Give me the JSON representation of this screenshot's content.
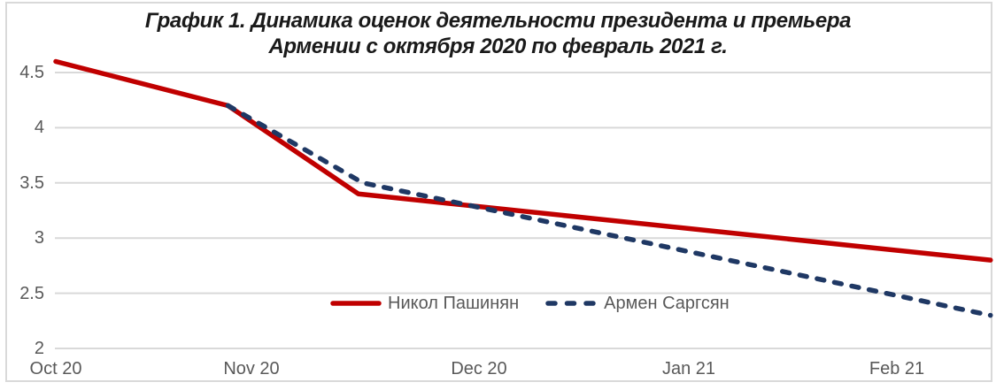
{
  "title": {
    "line1": "График 1. Динамика оценок деятельности президента и премьера",
    "line2": "Армении с октября 2020 по февраль 2021 г."
  },
  "chart_data": {
    "type": "line",
    "title": "График 1. Динамика оценок деятельности президента и премьера Армении с октября 2020 по февраль 2021 г.",
    "x_axis": {
      "unit": "months from October 2020 (0 = Oct 20 ... 4 = Feb 21)",
      "ticks": [
        {
          "label": "Oct 20",
          "pos": 0
        },
        {
          "label": "Nov 20",
          "pos": 1
        },
        {
          "label": "Dec 20",
          "pos": 2
        },
        {
          "label": "Jan 21",
          "pos": 3
        },
        {
          "label": "Feb 21",
          "pos": 4
        }
      ]
    },
    "y_axis": {
      "range": [
        2,
        4.75
      ],
      "ticks": [
        {
          "label": "4.5",
          "value": 4.5
        },
        {
          "label": "4",
          "value": 4.0
        },
        {
          "label": "3.5",
          "value": 3.5
        },
        {
          "label": "3",
          "value": 3.0
        },
        {
          "label": "2.5",
          "value": 2.5
        },
        {
          "label": "2",
          "value": 2.0
        }
      ]
    },
    "grid": true,
    "legend_position": "bottom-center-inside",
    "series": [
      {
        "name": "Никол Пашинян",
        "color": "#c00000",
        "line_style": "solid",
        "points": [
          {
            "x": 0.0,
            "y": 4.6
          },
          {
            "x": 0.88,
            "y": 4.2
          },
          {
            "x": 1.47,
            "y": 3.4
          },
          {
            "x": 4.45,
            "y": 2.8
          }
        ]
      },
      {
        "name": "Армен Саргсян",
        "color": "#1f3864",
        "line_style": "dashed",
        "points": [
          {
            "x": 0.88,
            "y": 4.2
          },
          {
            "x": 1.49,
            "y": 3.5
          },
          {
            "x": 4.45,
            "y": 2.3
          }
        ]
      }
    ]
  },
  "colors": {
    "gridline": "#d9d9d9",
    "border": "#d9d9d9",
    "axis_text": "#595959",
    "title_text": "#1a1a1a",
    "background": "#ffffff"
  }
}
